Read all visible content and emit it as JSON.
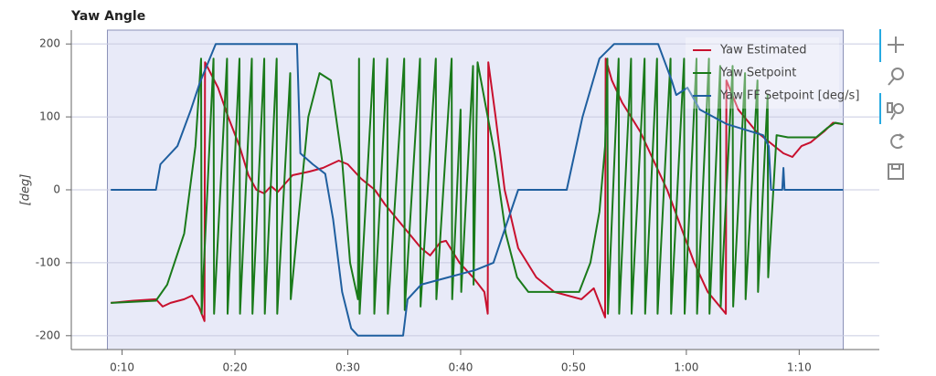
{
  "chart_data": {
    "type": "line",
    "title": "Yaw Angle",
    "y_label": "[deg]",
    "xlim": [
      5.5,
      77.1
    ],
    "ylim": [
      -219,
      219
    ],
    "xticks": [
      {
        "value": 10,
        "label": "0:10"
      },
      {
        "value": 20,
        "label": "0:20"
      },
      {
        "value": 30,
        "label": "0:30"
      },
      {
        "value": 40,
        "label": "0:40"
      },
      {
        "value": 50,
        "label": "0:50"
      },
      {
        "value": 60,
        "label": "1:00"
      },
      {
        "value": 70,
        "label": "1:10"
      }
    ],
    "yticks": [
      -200,
      -100,
      0,
      100,
      200
    ],
    "grid": true,
    "legend": "top_right",
    "shaded_range": [
      8.7,
      73.9
    ],
    "series": [
      {
        "name": "Yaw Estimated",
        "color": "#c8102e",
        "x": [
          9,
          11,
          13,
          13.6,
          14.3,
          15.5,
          16.2,
          16.8,
          17.3,
          17.35,
          18.5,
          19.4,
          20.4,
          21.2,
          21.9,
          22.6,
          23.2,
          23.8,
          25.1,
          26.6,
          27.8,
          29.2,
          30,
          31.2,
          32.4,
          33.3,
          34.9,
          36.5,
          37.3,
          38.2,
          38.7,
          39.9,
          41.1,
          42.1,
          42.4,
          42.45,
          43.1,
          43.9,
          45.1,
          46.7,
          48.3,
          50.7,
          51.8,
          52.8,
          52.85,
          53.4,
          54.3,
          55.9,
          57.1,
          58.3,
          59.5,
          60.7,
          61.9,
          63.5,
          63.55,
          64.6,
          66.2,
          67.8,
          68.6,
          69.4,
          70.2,
          71,
          72.2,
          73,
          73.9
        ],
        "values": [
          -155,
          -152,
          -150,
          -160,
          -155,
          -150,
          -145,
          -160,
          -180,
          175,
          140,
          100,
          60,
          20,
          0,
          -5,
          5,
          -3,
          20,
          25,
          30,
          40,
          35,
          15,
          0,
          -20,
          -50,
          -80,
          -90,
          -72,
          -70,
          -100,
          -120,
          -140,
          -170,
          175,
          100,
          0,
          -80,
          -120,
          -140,
          -150,
          -135,
          -175,
          180,
          150,
          120,
          80,
          40,
          0,
          -50,
          -100,
          -140,
          -170,
          150,
          110,
          80,
          60,
          50,
          45,
          60,
          65,
          80,
          92,
          90
        ]
      },
      {
        "name": "Yaw Setpoint",
        "color": "#1a7a1a",
        "x": [
          9,
          13,
          14,
          15.5,
          16.5,
          17.0,
          17.05,
          18.1,
          18.15,
          19.3,
          19.35,
          20.4,
          20.45,
          21.5,
          21.55,
          22.6,
          22.65,
          23.7,
          23.75,
          24.9,
          24.95,
          25.5,
          26.5,
          27.5,
          28.5,
          29.5,
          30.2,
          30.9,
          31,
          31.05,
          32.3,
          32.35,
          33.5,
          33.55,
          35.0,
          35.05,
          36.4,
          36.45,
          37.8,
          37.85,
          39.2,
          39.25,
          40.0,
          40.05,
          41.1,
          41.15,
          41.5,
          43,
          44,
          45,
          46,
          50.5,
          51.5,
          52.3,
          52.8,
          53.0,
          53.05,
          54.0,
          54.05,
          55.1,
          55.15,
          56.3,
          56.35,
          57.4,
          57.45,
          58.6,
          58.65,
          59.8,
          59.85,
          60.9,
          60.95,
          62.0,
          62.05,
          63.0,
          63.05,
          64.1,
          64.15,
          65.2,
          65.25,
          66.3,
          66.35,
          67.2,
          67.25,
          68.0,
          69,
          71.5,
          72.5,
          73.2,
          73.9
        ],
        "values": [
          -155,
          -152,
          -130,
          -60,
          60,
          180,
          -170,
          180,
          -170,
          180,
          -170,
          180,
          -170,
          180,
          -170,
          180,
          -170,
          180,
          -170,
          160,
          -150,
          -60,
          100,
          160,
          150,
          40,
          -100,
          -150,
          180,
          -170,
          180,
          -170,
          180,
          -170,
          180,
          -165,
          180,
          -160,
          180,
          -150,
          180,
          -150,
          110,
          -140,
          170,
          -130,
          175,
          50,
          -60,
          -120,
          -140,
          -140,
          -100,
          -30,
          60,
          180,
          -170,
          180,
          -170,
          180,
          -170,
          180,
          -170,
          180,
          -170,
          180,
          -170,
          180,
          -170,
          180,
          -170,
          180,
          -170,
          170,
          -160,
          170,
          -160,
          160,
          -150,
          150,
          -140,
          130,
          -120,
          75,
          72,
          72,
          85,
          92,
          90
        ]
      },
      {
        "name": "Yaw FF Setpoint [deg/s]",
        "color": "#1f5f9f",
        "x": [
          9,
          13,
          13.4,
          14.9,
          16.1,
          16.9,
          18.3,
          25.5,
          25.8,
          26.9,
          28,
          28.7,
          29.5,
          30.3,
          30.9,
          34.9,
          35.3,
          36.5,
          38.9,
          41.3,
          42.9,
          45.1,
          49.4,
          50.8,
          52.3,
          53.6,
          57.5,
          58.7,
          59.1,
          60.1,
          61.2,
          63.6,
          66.8,
          67.3,
          67.5,
          68.5,
          68.6,
          68.7,
          73.9
        ],
        "values": [
          0,
          0,
          35,
          60,
          110,
          147,
          200,
          200,
          50,
          35,
          22,
          -40,
          -140,
          -190,
          -200,
          -200,
          -150,
          -130,
          -120,
          -110,
          -100,
          0,
          0,
          100,
          180,
          200,
          200,
          150,
          130,
          140,
          110,
          90,
          75,
          60,
          0,
          0,
          30,
          0,
          0
        ]
      }
    ]
  }
}
